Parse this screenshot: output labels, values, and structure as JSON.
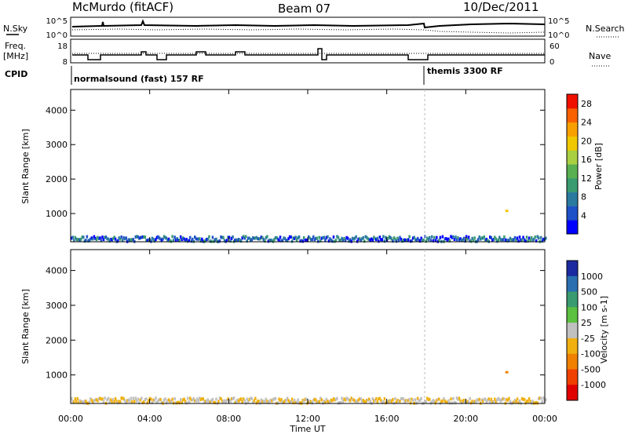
{
  "header": {
    "radar": "McMurdo (fitACF)",
    "beam": "Beam 07",
    "date": "10/Dec/2011"
  },
  "top_panels": {
    "nsky_label": "N.Sky",
    "nsky_ticks": [
      "10^5",
      "10^0"
    ],
    "nsearch_label": "N.Search",
    "nsearch_ticks": [
      "10^5",
      "10^0"
    ],
    "freq_label_1": "Freq.",
    "freq_label_2": "[MHz]",
    "freq_ticks": [
      "18",
      "8"
    ],
    "nave_label": "Nave",
    "nave_ticks": [
      "60",
      "0"
    ],
    "cpid_label": "CPID",
    "cpid_segments": [
      "normalsound (fast) 157 RF",
      "themis 3300 RF"
    ]
  },
  "colors": {
    "power_scale": [
      "#0000ff",
      "#1e50c8",
      "#2a7aa0",
      "#3a9a70",
      "#58b050",
      "#a8d040",
      "#f0c800",
      "#f8a000",
      "#f86000",
      "#f01000"
    ],
    "velocity_scale": [
      "#1c2aa0",
      "#2a70b0",
      "#3a9a70",
      "#5cc040",
      "#c0c0c0",
      "#f0b010",
      "#f08000",
      "#f04000",
      "#e00000"
    ]
  },
  "chart_data": [
    {
      "type": "heatmap",
      "panel": "power",
      "ylabel": "Slant Range [km]",
      "yticks": [
        "1000",
        "2000",
        "3000",
        "4000"
      ],
      "ylim": [
        180,
        4600
      ],
      "xticks": [
        "00:00",
        "04:00",
        "08:00",
        "12:00",
        "16:00",
        "20:00",
        "00:00"
      ],
      "xlim": [
        0,
        24
      ],
      "colorbar_label": "Power [dB]",
      "colorbar_ticks": [
        "4",
        "8",
        "12",
        "16",
        "20",
        "24",
        "28"
      ],
      "colorbar_range": [
        0,
        30
      ],
      "grid": false
    },
    {
      "type": "heatmap",
      "panel": "velocity",
      "ylabel": "Slant Range [km]",
      "yticks": [
        "1000",
        "2000",
        "3000",
        "4000"
      ],
      "ylim": [
        180,
        4600
      ],
      "xlabel": "Time UT",
      "xticks": [
        "00:00",
        "04:00",
        "08:00",
        "12:00",
        "16:00",
        "20:00",
        "00:00"
      ],
      "xlim": [
        0,
        24
      ],
      "colorbar_label": "Velocity [m s-1]",
      "colorbar_ticks": [
        "1000",
        "500",
        "100",
        "25",
        "-25",
        "-100",
        "-500",
        "-1000"
      ],
      "grid": false
    }
  ]
}
